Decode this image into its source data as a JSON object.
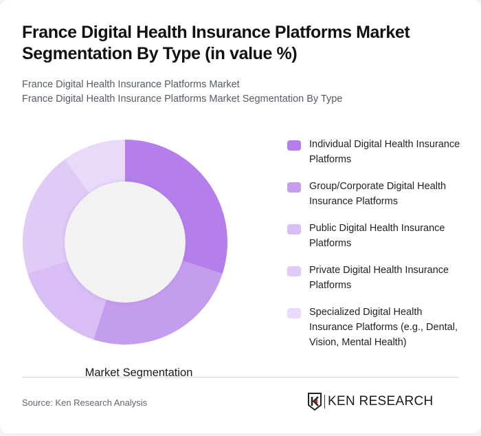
{
  "header": {
    "title": "France Digital Health Insurance Platforms Market Segmentation By Type (in value %)",
    "subtitle_lines": [
      "France Digital Health Insurance Platforms Market",
      "France Digital Health Insurance Platforms Market Segmentation By Type"
    ]
  },
  "chart": {
    "center_label": "Market Segmentation"
  },
  "legend": {
    "items": [
      {
        "label": "Individual Digital Health Insurance Platforms",
        "color": "#B47FEA"
      },
      {
        "label": "Group/Corporate Digital Health Insurance Platforms",
        "color": "#C59DEE"
      },
      {
        "label": "Public Digital Health Insurance Platforms",
        "color": "#D8BEF5"
      },
      {
        "label": "Private Digital Health Insurance Platforms",
        "color": "#E0CBF7"
      },
      {
        "label": "Specialized Digital Health Insurance Platforms (e.g., Dental, Vision, Mental Health)",
        "color": "#E9DAFA"
      }
    ]
  },
  "footer": {
    "source": "Source: Ken Research Analysis",
    "logo_text": "KEN RESEARCH"
  },
  "chart_data": {
    "type": "pie",
    "subtype": "donut",
    "title": "France Digital Health Insurance Platforms Market Segmentation By Type (in value %)",
    "center_label": "Market Segmentation",
    "categories": [
      "Individual Digital Health Insurance Platforms",
      "Group/Corporate Digital Health Insurance Platforms",
      "Public Digital Health Insurance Platforms",
      "Private Digital Health Insurance Platforms",
      "Specialized Digital Health Insurance Platforms (e.g., Dental, Vision, Mental Health)"
    ],
    "values": [
      30,
      25,
      15,
      20,
      10
    ],
    "colors": [
      "#B47FEA",
      "#C59DEE",
      "#D8BEF5",
      "#E0CBF7",
      "#E9DAFA"
    ],
    "unit": "%",
    "start_angle": "12 o'clock, clockwise",
    "legend_position": "right"
  }
}
